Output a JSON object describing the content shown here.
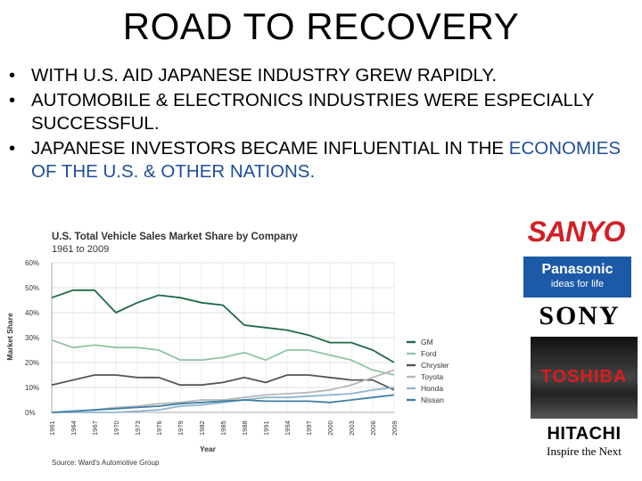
{
  "slide": {
    "title": "ROAD TO RECOVERY",
    "bullets": [
      {
        "text": "WITH U.S. AID JAPANESE INDUSTRY GREW RAPIDLY."
      },
      {
        "text": "AUTOMOBILE & ELECTRONICS INDUSTRIES WERE ESPECIALLY SUCCESSFUL."
      },
      {
        "text": "JAPANESE INVESTORS BECAME INFLUENTIAL IN THE",
        "text_blue": "ECONOMIES OF THE U.S. & OTHER NATIONS."
      }
    ]
  },
  "logos": {
    "sanyo": "SANYO",
    "panasonic": "Panasonic",
    "panasonic_tagline": "ideas for life",
    "sony": "SONY",
    "toshiba": "TOSHIBA",
    "hitachi": "HITACHI",
    "hitachi_tagline": "Inspire the Next"
  },
  "chart_data": {
    "type": "line",
    "title": "U.S. Total Vehicle Sales Market Share by Company",
    "subtitle": "1961 to 2009",
    "xlabel": "Year",
    "ylabel": "Market Share",
    "source": "Source: Ward's Automotive Group",
    "xlim": [
      1961,
      2009
    ],
    "ylim": [
      0,
      60
    ],
    "yticks": [
      "0%",
      "10%",
      "20%",
      "30%",
      "40%",
      "50%",
      "60%"
    ],
    "xticks": [
      "1961",
      "1964",
      "1967",
      "1970",
      "1973",
      "1976",
      "1979",
      "1982",
      "1985",
      "1988",
      "1991",
      "1994",
      "1997",
      "2000",
      "2003",
      "2006",
      "2009"
    ],
    "legend_position": "right",
    "grid": true,
    "x": [
      1961,
      1964,
      1967,
      1970,
      1973,
      1976,
      1979,
      1982,
      1985,
      1988,
      1991,
      1994,
      1997,
      2000,
      2003,
      2006,
      2009
    ],
    "series": [
      {
        "name": "GM",
        "color": "#1d6b45",
        "values": [
          46,
          49,
          49,
          40,
          44,
          47,
          46,
          44,
          43,
          35,
          34,
          33,
          31,
          28,
          28,
          25,
          20
        ]
      },
      {
        "name": "Ford",
        "color": "#8fc4a4",
        "values": [
          29,
          26,
          27,
          26,
          26,
          25,
          21,
          21,
          22,
          24,
          21,
          25,
          25,
          23,
          21,
          17,
          15
        ]
      },
      {
        "name": "Chrysler",
        "color": "#555555",
        "values": [
          11,
          13,
          15,
          15,
          14,
          14,
          11,
          11,
          12,
          14,
          12,
          15,
          15,
          14,
          13,
          13,
          9
        ]
      },
      {
        "name": "Toyota",
        "color": "#b8b8b8",
        "values": [
          0,
          0.5,
          1,
          2,
          2.5,
          3.5,
          4,
          5,
          5,
          6,
          7,
          7.5,
          8,
          9,
          11,
          14,
          17
        ]
      },
      {
        "name": "Honda",
        "color": "#8fb4cc",
        "values": [
          0,
          0,
          0,
          0,
          0.5,
          1,
          2.5,
          3,
          4,
          5,
          6,
          6,
          6.5,
          7,
          7.5,
          9,
          10
        ]
      },
      {
        "name": "Nissan",
        "color": "#3f7fa6",
        "values": [
          0,
          0.5,
          1,
          1.5,
          2,
          2.5,
          3.5,
          4,
          4.5,
          5,
          4.5,
          4.5,
          4.5,
          4,
          5,
          6,
          7
        ]
      }
    ]
  }
}
